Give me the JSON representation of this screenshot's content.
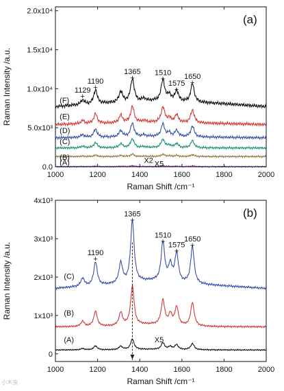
{
  "watermark": "小木虫",
  "chart_data": [
    {
      "type": "line",
      "panel_label": "(a)",
      "xlabel": "Raman Shift /cm⁻¹",
      "ylabel": "Raman Intensity /a.u.",
      "xlim": [
        1000,
        2000
      ],
      "ylim": [
        0,
        20500
      ],
      "x_ticks": [
        1000,
        1200,
        1400,
        1600,
        1800,
        2000
      ],
      "x_tick_labels": [
        "1000",
        "1200",
        "1400",
        "1600",
        "1800",
        "2000"
      ],
      "y_ticks": [
        0,
        5000,
        10000,
        15000,
        20000
      ],
      "y_tick_labels": [
        "0.0",
        "5.0x10³",
        "1.0x10⁴",
        "1.5x10⁴",
        "2.0x10⁴"
      ],
      "grid": false,
      "peak_annotations": [
        {
          "x": 1129,
          "label": "1129"
        },
        {
          "x": 1190,
          "label": "1190"
        },
        {
          "x": 1365,
          "label": "1365"
        },
        {
          "x": 1510,
          "label": "1510"
        },
        {
          "x": 1575,
          "label": "1575"
        },
        {
          "x": 1650,
          "label": "1650"
        }
      ],
      "text_annotations": [
        {
          "label": "X2",
          "x": 1420,
          "y": 500
        },
        {
          "label": "X5",
          "x": 1470,
          "y": 50
        }
      ],
      "peaks": [
        [
          1129,
          1.5
        ],
        [
          1190,
          4.5
        ],
        [
          1310,
          3.5
        ],
        [
          1365,
          7.5
        ],
        [
          1420,
          0.8
        ],
        [
          1510,
          7.0
        ],
        [
          1540,
          2.0
        ],
        [
          1575,
          3.5
        ],
        [
          1650,
          6.0
        ]
      ],
      "series": [
        {
          "name": "(A)",
          "color": "#7b2f9a",
          "baseline": [
            0,
            0
          ],
          "peak_amp": 0.06,
          "label_x": 1020,
          "label_y": 200
        },
        {
          "name": "(B)",
          "color": "#8a7a3a",
          "baseline": [
            1300,
            1300
          ],
          "peak_amp": 0.15,
          "label_x": 1020,
          "label_y": 900
        },
        {
          "name": "(C)",
          "color": "#1a8f7a",
          "baseline": [
            2400,
            2400
          ],
          "peak_amp": 0.6,
          "label_x": 1020,
          "label_y": 2900
        },
        {
          "name": "(D)",
          "color": "#3a4fa8",
          "baseline": [
            3700,
            3800
          ],
          "peak_amp": 0.9,
          "label_x": 1020,
          "label_y": 4300
        },
        {
          "name": "(E)",
          "color": "#d23a3a",
          "baseline": [
            5400,
            5600
          ],
          "peak_amp": 1.1,
          "label_x": 1020,
          "label_y": 6100
        },
        {
          "name": "(F)",
          "color": "#111111",
          "baseline": [
            7700,
            8300
          ],
          "peak_amp": 1.55,
          "label_x": 1020,
          "label_y": 8200
        }
      ]
    },
    {
      "type": "line",
      "panel_label": "(b)",
      "xlabel": "Raman Shift /cm⁻¹",
      "ylabel": "Raman Intensity /a.u.",
      "xlim": [
        1000,
        2000
      ],
      "ylim": [
        -200,
        4000
      ],
      "x_ticks": [
        1000,
        1200,
        1400,
        1600,
        1800,
        2000
      ],
      "x_tick_labels": [
        "1000",
        "1200",
        "1400",
        "1600",
        "1800",
        "2000"
      ],
      "y_ticks": [
        0,
        1000,
        2000,
        3000,
        4000
      ],
      "y_tick_labels": [
        "0",
        "1x10³",
        "2x10³",
        "3x10³",
        "4x10³"
      ],
      "grid": false,
      "peak_annotations": [
        {
          "x": 1190,
          "label": "1190"
        },
        {
          "x": 1365,
          "label": "1365"
        },
        {
          "x": 1510,
          "label": "1510"
        },
        {
          "x": 1575,
          "label": "1575"
        },
        {
          "x": 1650,
          "label": "1650"
        }
      ],
      "text_annotations": [
        {
          "label": "X5",
          "x": 1470,
          "y": 300
        }
      ],
      "marker_line_x": 1365,
      "peaks": [
        [
          1129,
          0.8
        ],
        [
          1190,
          2.3
        ],
        [
          1310,
          2.0
        ],
        [
          1365,
          6.0
        ],
        [
          1510,
          3.8
        ],
        [
          1545,
          1.6
        ],
        [
          1575,
          2.8
        ],
        [
          1650,
          3.6
        ]
      ],
      "series": [
        {
          "name": "(A)",
          "color": "#111111",
          "baseline": [
            100,
            100
          ],
          "peak_amp": 45,
          "label_x": 1040,
          "label_y": 300
        },
        {
          "name": "(B)",
          "color": "#d23a3a",
          "baseline": [
            700,
            700
          ],
          "peak_amp": 170,
          "label_x": 1040,
          "label_y": 1000
        },
        {
          "name": "(C)",
          "color": "#3a4fa8",
          "baseline": [
            1700,
            1800
          ],
          "peak_amp": 270,
          "label_x": 1040,
          "label_y": 1950
        }
      ]
    }
  ]
}
